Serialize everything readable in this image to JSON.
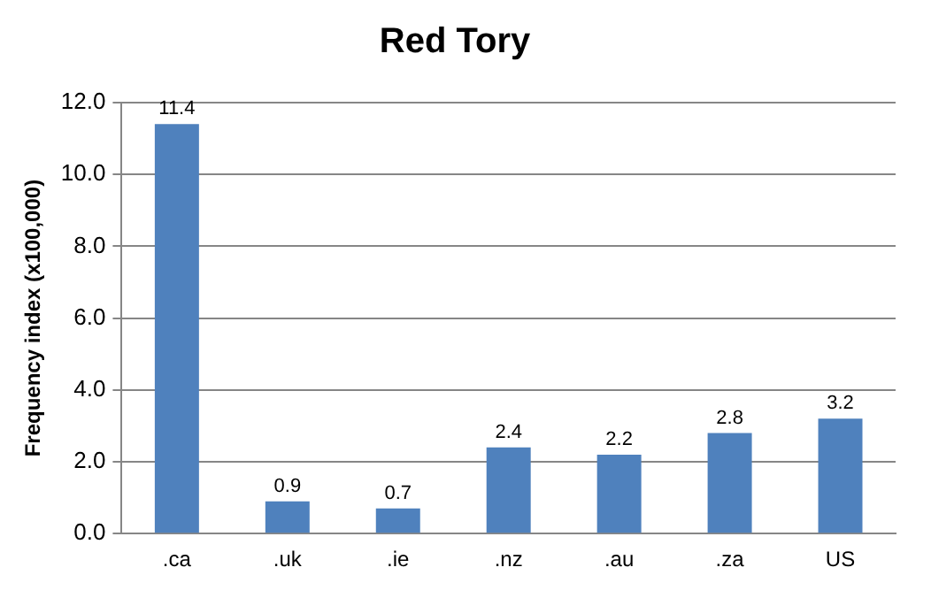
{
  "chart_data": {
    "type": "bar",
    "title": "Red Tory",
    "ylabel": "Frequency index (x100,000)",
    "categories": [
      ".ca",
      ".uk",
      ".ie",
      ".nz",
      ".au",
      ".za",
      "US"
    ],
    "values": [
      11.4,
      0.9,
      0.7,
      2.4,
      2.2,
      2.8,
      3.2
    ],
    "color": "#4f81bd",
    "ylim": [
      0,
      12
    ],
    "yticks": [
      {
        "value": 0,
        "label": "0.0"
      },
      {
        "value": 2,
        "label": "2.0"
      },
      {
        "value": 4,
        "label": "4.0"
      },
      {
        "value": 6,
        "label": "6.0"
      },
      {
        "value": 8,
        "label": "8.0"
      },
      {
        "value": 10,
        "label": "10.0"
      },
      {
        "value": 12,
        "label": "12.0"
      }
    ],
    "grid": "y",
    "data_labels": true,
    "legend": false
  }
}
